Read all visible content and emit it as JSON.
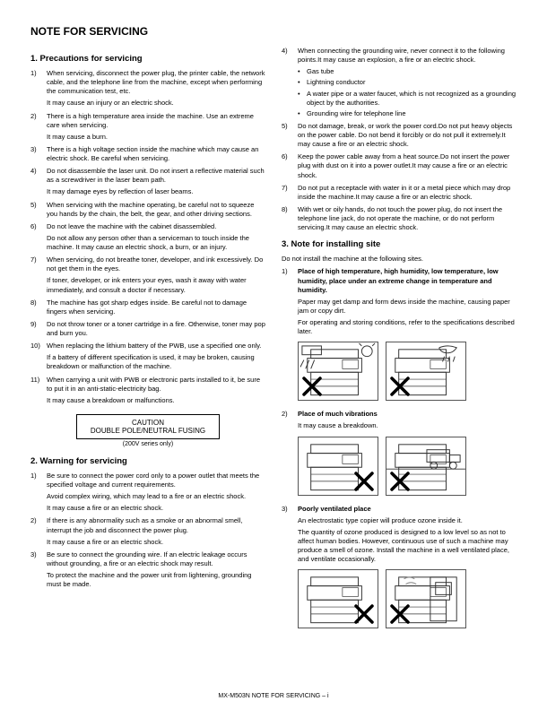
{
  "pageTitle": "NOTE FOR SERVICING",
  "section1": {
    "heading": "1.   Precautions for servicing",
    "items": [
      {
        "text": "When servicing, disconnect the power plug, the printer cable, the network cable, and the telephone line from the machine, except when performing the communication test, etc.",
        "sub": [
          "It may cause an injury or an electric shock."
        ]
      },
      {
        "text": "There is a high temperature area inside the machine. Use an extreme care when servicing.",
        "sub": [
          "It may cause a burn."
        ]
      },
      {
        "text": "There is a high voltage section inside the machine which may cause an electric shock. Be careful when servicing."
      },
      {
        "text": "Do not disassemble the laser unit. Do not insert a reflective material such as a screwdriver in the laser beam path.",
        "sub": [
          "It may damage eyes by reflection of laser beams."
        ]
      },
      {
        "text": "When servicing with the machine operating, be careful not to squeeze you hands by the chain, the belt, the gear, and other driving sections."
      },
      {
        "text": "Do not leave the machine with the cabinet disassembled.",
        "sub": [
          "Do not allow any person other than a serviceman to touch inside the machine. It may cause an electric shock, a burn, or an injury."
        ]
      },
      {
        "text": "When servicing, do not breathe toner, developer, and ink excessively. Do not get them in the eyes.",
        "sub": [
          "If toner, developer, or ink enters your eyes, wash it away with water immediately, and consult a doctor if necessary."
        ]
      },
      {
        "text": "The machine has got sharp edges inside. Be careful not to damage fingers when servicing."
      },
      {
        "text": "Do not throw toner or a toner cartridge in a fire. Otherwise, toner may pop and burn you."
      },
      {
        "text": "When replacing the lithium battery of the PWB, use a specified one only.",
        "sub": [
          "If a battery of different specification is used, it may be broken, causing breakdown or malfunction of the machine."
        ]
      },
      {
        "text": "When carrying a unit with PWB or electronic parts installed to it, be sure to put it in an anti-static-electricity bag.",
        "sub": [
          "It may cause a breakdown or malfunctions."
        ]
      }
    ]
  },
  "caution": {
    "line1": "CAUTION",
    "line2": "DOUBLE POLE/NEUTRAL FUSING",
    "sub": "(200V series only)"
  },
  "section2": {
    "heading": "2.   Warning for servicing",
    "items": [
      {
        "text": "Be sure to connect the power cord only to a power outlet that meets the specified voltage and current requirements.",
        "sub": [
          "Avoid complex wiring, which may lead to a fire or an electric shock.",
          "It may cause a fire or an electric shock."
        ]
      },
      {
        "text": "If there is any abnormality such as a smoke or an abnormal smell, interrupt the job and disconnect the power plug.",
        "sub": [
          "It may cause a fire or an electric shock."
        ]
      },
      {
        "text": "Be sure to connect the grounding wire. If an electric leakage occurs without grounding, a fire or an electric shock may result.",
        "sub": [
          "To protect the machine and the power unit from lightening, grounding must be made."
        ]
      }
    ]
  },
  "col2top": {
    "items": [
      {
        "n": 4,
        "text": "When connecting the grounding wire, never connect it to the following points.",
        "sub": [
          "It may cause an explosion, a fire or an electric shock."
        ],
        "bullets": [
          "Gas tube",
          "Lightning conductor",
          "A water pipe or a water faucet, which is not recognized as a grounding object by the authorities.",
          "Grounding wire for telephone line"
        ]
      },
      {
        "n": 5,
        "text": "Do not damage, break, or work the power cord.",
        "sub": [
          "Do not put heavy objects on the power cable. Do not bend it forcibly or do not pull it extremely.",
          "It may cause a fire or an electric shock."
        ]
      },
      {
        "n": 6,
        "text": "Keep the power cable away from a heat source.",
        "sub": [
          "Do not insert the power plug with dust on it into a power outlet.",
          "It may cause a fire or an electric shock."
        ]
      },
      {
        "n": 7,
        "text": "Do not put a receptacle with water in it or a metal piece which may drop inside the machine.",
        "sub": [
          "It may cause a fire or an electric shock."
        ]
      },
      {
        "n": 8,
        "text": "With wet or oily hands, do not touch the power plug, do not insert the telephone line jack, do not operate the machine, or do not perform servicing.",
        "sub": [
          "It may cause an electric shock."
        ]
      }
    ]
  },
  "section3": {
    "heading": "3.   Note for installing site",
    "intro": "Do not install the machine at the following sites.",
    "items": [
      {
        "bold": "Place of high temperature, high humidity, low temperature, low humidity, place under an extreme change in temperature and humidity.",
        "sub": [
          "Paper may get damp and form dews inside the machine, causing paper jam or copy dirt.",
          "For operating and storing conditions, refer to the specifications described later."
        ]
      },
      {
        "bold": "Place of much vibrations",
        "sub": [
          "It may cause a breakdown."
        ]
      },
      {
        "bold": "Poorly ventilated place",
        "sub": [
          "An electrostatic type copier will produce ozone inside it.",
          "The quantity of ozone produced is designed to a low level so as not to affect human bodies. However, continuous use of such a machine may produce a smell of ozone. Install the machine in a well ventilated place, and ventilate occasionally."
        ]
      }
    ]
  },
  "footer": "MX-M503N  NOTE FOR SERVICING – i"
}
